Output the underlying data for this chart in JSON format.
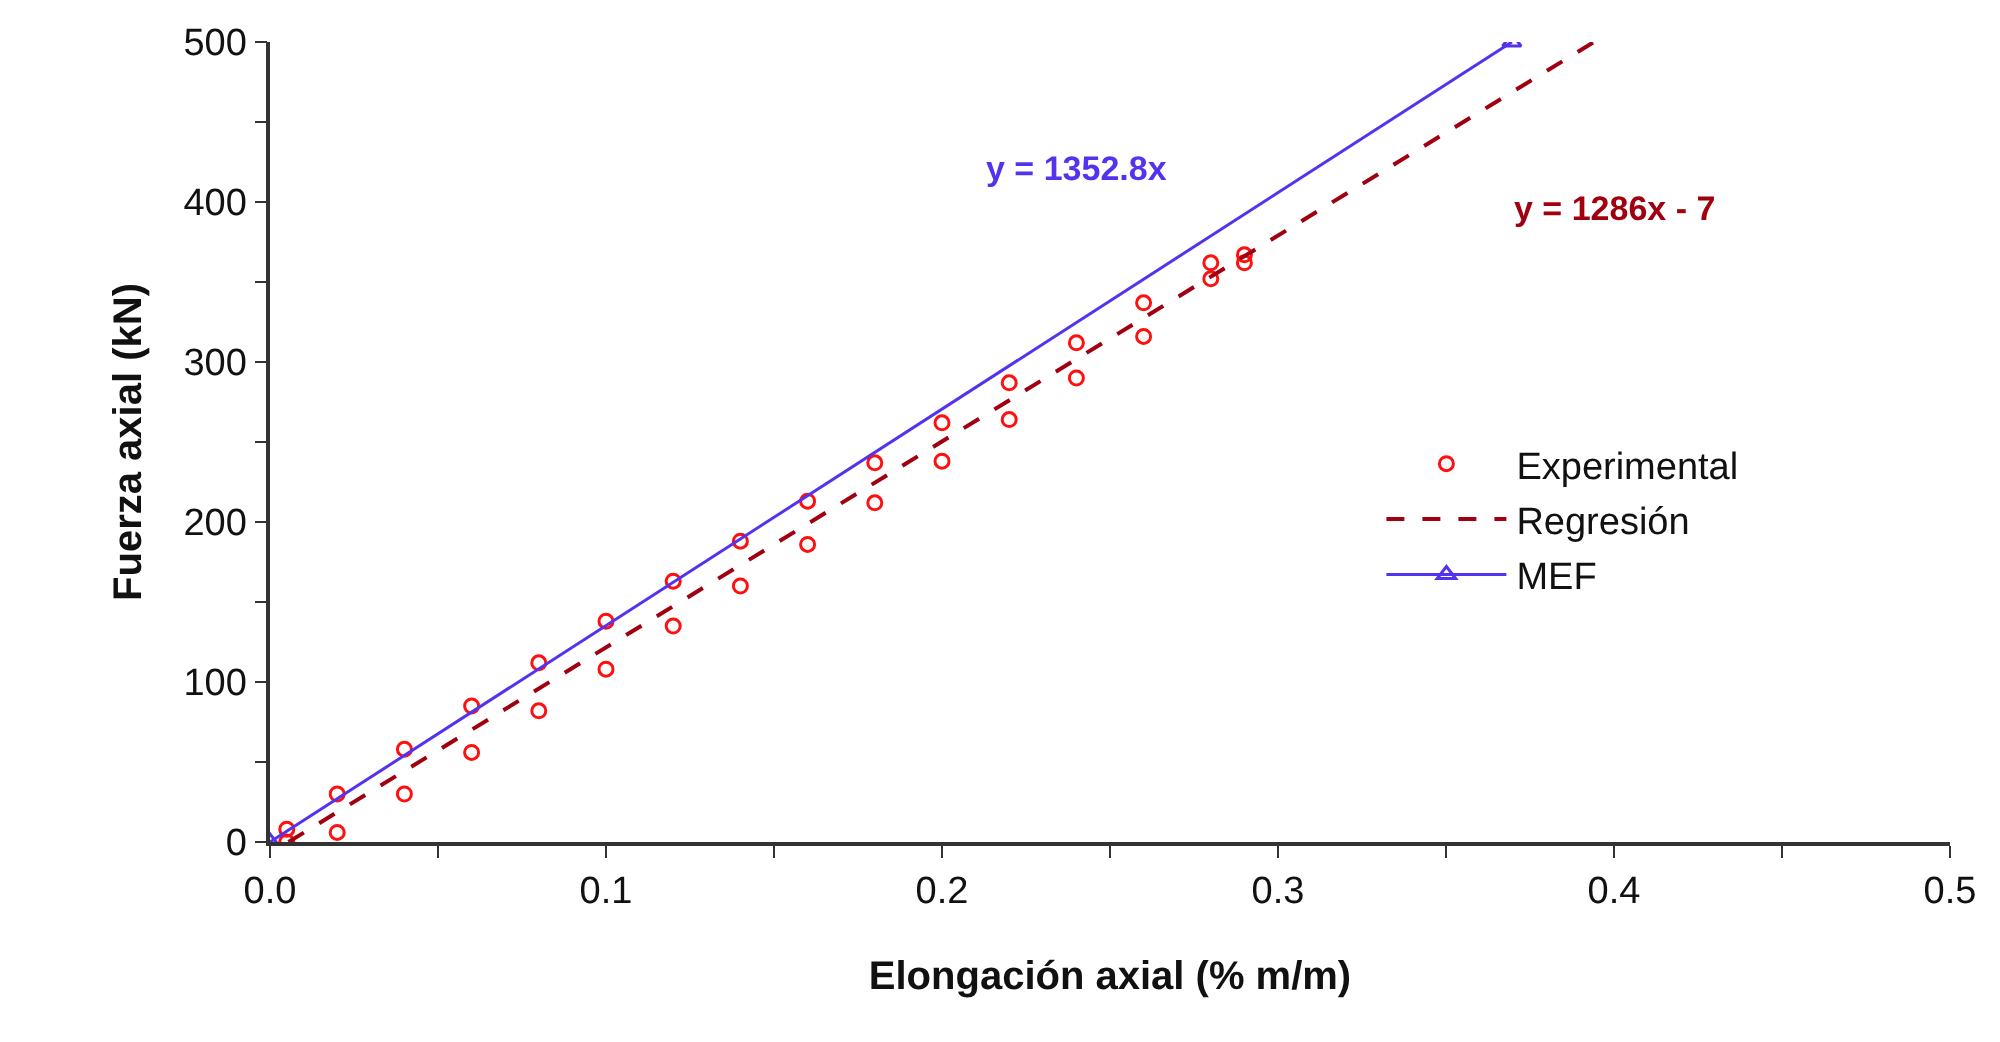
{
  "chart_data": {
    "type": "scatter",
    "xlabel": "Elongación axial (% m/m)",
    "ylabel": "Fuerza axial (kN)",
    "xlim": [
      0,
      0.5
    ],
    "ylim": [
      0,
      500
    ],
    "xticks": [
      {
        "value": 0,
        "label": "0.0"
      },
      {
        "value": 0.05,
        "label": null
      },
      0.1,
      {
        "value": 0.15,
        "label": null
      },
      0.2,
      {
        "value": 0.25,
        "label": null
      },
      0.3,
      {
        "value": 0.35,
        "label": null
      },
      0.4,
      {
        "value": 0.45,
        "label": null
      },
      0.5
    ],
    "yticks": [
      0,
      {
        "value": 50,
        "label": null
      },
      100,
      {
        "value": 150,
        "label": null
      },
      200,
      {
        "value": 250,
        "label": null
      },
      300,
      {
        "value": 350,
        "label": null
      },
      400,
      {
        "value": 450,
        "label": null
      },
      500
    ],
    "legend": "right",
    "series": [
      {
        "name": "Experimental",
        "marker": "circle",
        "color": "#ff1010",
        "x": [
          0.005,
          0.005,
          0.02,
          0.02,
          0.04,
          0.04,
          0.06,
          0.06,
          0.08,
          0.08,
          0.1,
          0.1,
          0.12,
          0.12,
          0.14,
          0.14,
          0.16,
          0.16,
          0.18,
          0.18,
          0.2,
          0.2,
          0.22,
          0.22,
          0.24,
          0.24,
          0.26,
          0.26,
          0.28,
          0.28,
          0.29,
          0.29
        ],
        "values": [
          8,
          0,
          30,
          6,
          58,
          30,
          85,
          56,
          112,
          82,
          138,
          108,
          163,
          135,
          188,
          160,
          213,
          186,
          237,
          212,
          262,
          238,
          287,
          264,
          312,
          290,
          337,
          316,
          362,
          352,
          367,
          362
        ]
      },
      {
        "name": "Regresión",
        "type": "line",
        "marker": "none",
        "line_style": "dashed",
        "color": "#a00010",
        "x": [
          0.0055,
          0.394
        ],
        "values": [
          0,
          500
        ]
      },
      {
        "name": "MEF",
        "type": "line",
        "marker": "triangle",
        "line_style": "solid",
        "color": "#5533ee",
        "x": [
          0,
          0.3696
        ],
        "values": [
          0,
          500
        ]
      }
    ],
    "annotations": [
      "y = 1352.8x",
      "y = 1286x - 7"
    ]
  }
}
